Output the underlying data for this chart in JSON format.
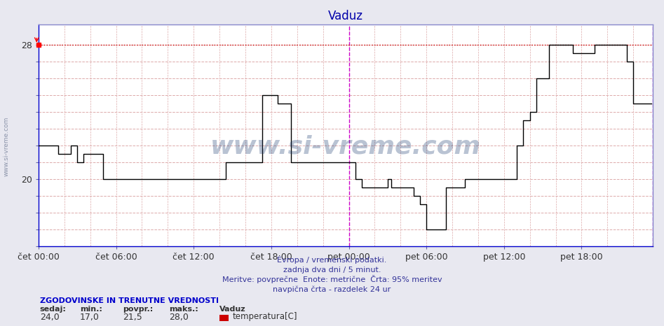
{
  "title": "Vaduz",
  "bg_color": "#e8e8f0",
  "plot_bg_color": "#ffffff",
  "line_color": "#cc0000",
  "grid_h_color": "#dd9999",
  "grid_v_color": "#ddaaaa",
  "dashed_line_color": "#cc0000",
  "y_dashed_line": 28,
  "ylim": [
    16,
    29.2
  ],
  "ytick_positions": [
    16,
    17,
    18,
    19,
    20,
    21,
    22,
    23,
    24,
    25,
    26,
    27,
    28
  ],
  "ytick_labels": [
    "",
    "",
    "",
    "",
    "20",
    "",
    "",
    "",
    "",
    "",
    "",
    "",
    "28"
  ],
  "xlim": [
    0,
    47.5
  ],
  "x_tick_hours": [
    0,
    6,
    12,
    18,
    24,
    30,
    36,
    42
  ],
  "x_tick_labels": [
    "čet 00:00",
    "čet 06:00",
    "čet 12:00",
    "čet 18:00",
    "pet 00:00",
    "pet 06:00",
    "pet 12:00",
    "pet 18:00"
  ],
  "vertical_line_hours": [
    24,
    47.5
  ],
  "vertical_line_color": "#cc00cc",
  "footer_line1": "Evropa / vremenski podatki.",
  "footer_line2": "zadnja dva dni / 5 minut.",
  "footer_line3": "Meritve: povprečne  Enote: metrične  Črta: 95% meritev",
  "footer_line4": "navpična črta - razdelek 24 ur",
  "legend_title": "ZGODOVINSKE IN TRENUTNE VREDNOSTI",
  "legend_labels": [
    "sedaj:",
    "min.:",
    "povpr.:",
    "maks.:",
    "Vaduz"
  ],
  "legend_values": [
    "24,0",
    "17,0",
    "21,5",
    "28,0"
  ],
  "legend_color": "#cc0000",
  "legend_item": "temperatura[C]",
  "watermark": "www.si-vreme.com",
  "watermark_color": "#1a3a6e",
  "watermark_alpha": 0.3,
  "left_text": "www.si-vreme.com",
  "time_series_hours": [
    0.0,
    0.5,
    1.0,
    1.5,
    2.0,
    2.5,
    3.0,
    3.5,
    4.0,
    5.0,
    5.5,
    6.0,
    7.0,
    8.0,
    9.0,
    10.0,
    11.0,
    12.0,
    13.0,
    14.0,
    14.5,
    15.0,
    16.0,
    17.0,
    17.3,
    18.0,
    18.5,
    19.0,
    19.5,
    20.0,
    20.5,
    21.0,
    22.0,
    23.0,
    23.5,
    24.0,
    24.5,
    25.0,
    25.5,
    26.0,
    26.5,
    27.0,
    27.3,
    27.5,
    28.5,
    29.0,
    29.5,
    30.0,
    30.5,
    31.0,
    31.5,
    32.0,
    33.0,
    34.0,
    35.0,
    36.0,
    36.3,
    37.0,
    37.5,
    38.0,
    38.5,
    39.0,
    39.5,
    40.0,
    40.5,
    41.0,
    41.3,
    42.0,
    42.5,
    43.0,
    43.5,
    44.0,
    44.5,
    45.0,
    45.5,
    46.0,
    46.5,
    47.0,
    47.4
  ],
  "time_series_temp": [
    22.0,
    22.0,
    22.0,
    21.5,
    21.5,
    22.0,
    21.0,
    21.5,
    21.5,
    20.0,
    20.0,
    20.0,
    20.0,
    20.0,
    20.0,
    20.0,
    20.0,
    20.0,
    20.0,
    20.0,
    21.0,
    21.0,
    21.0,
    21.0,
    25.0,
    25.0,
    24.5,
    24.5,
    21.0,
    21.0,
    21.0,
    21.0,
    21.0,
    21.0,
    21.0,
    21.0,
    20.0,
    19.5,
    19.5,
    19.5,
    19.5,
    20.0,
    19.5,
    19.5,
    19.5,
    19.0,
    18.5,
    17.0,
    17.0,
    17.0,
    19.5,
    19.5,
    20.0,
    20.0,
    20.0,
    20.0,
    20.0,
    22.0,
    23.5,
    24.0,
    26.0,
    26.0,
    28.0,
    28.0,
    28.0,
    28.0,
    27.5,
    27.5,
    27.5,
    28.0,
    28.0,
    28.0,
    28.0,
    28.0,
    27.0,
    24.5,
    24.5,
    24.5,
    24.5
  ]
}
